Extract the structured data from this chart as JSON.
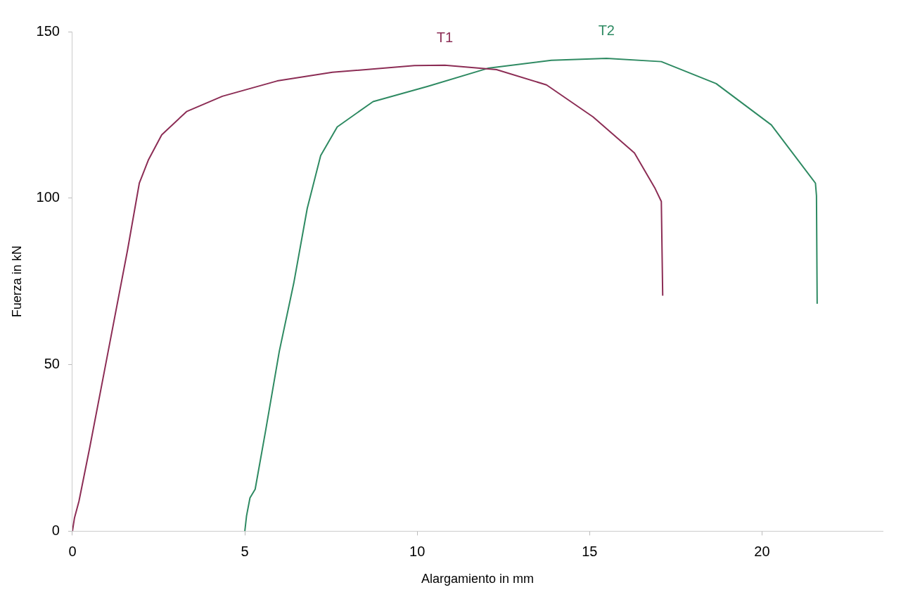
{
  "chart_data": {
    "type": "line",
    "xlabel": "Alargamiento in mm",
    "ylabel": "Fuerza in kN",
    "xlim": [
      0,
      23.5
    ],
    "xticks": [
      0,
      5,
      10,
      15,
      20
    ],
    "ylim": [
      0,
      150
    ],
    "yticks": [
      0,
      50,
      100,
      150
    ],
    "grid": false,
    "legend": false,
    "marker": "none",
    "line_style": "solid",
    "series": [
      {
        "name": "T1",
        "color": "#8c2d55",
        "x": [
          0,
          0.06,
          0.19,
          0.5,
          1.0,
          1.6,
          1.94,
          2.2,
          2.59,
          3.31,
          4.35,
          5.94,
          7.54,
          9.92,
          10.8,
          12.3,
          13.75,
          15.1,
          16.3,
          16.9,
          17.08,
          17.12
        ],
        "values": [
          0,
          4,
          9,
          25,
          52,
          84.5,
          104.5,
          111.4,
          119,
          126,
          130.6,
          135.2,
          137.8,
          139.8,
          139.9,
          138.6,
          134,
          124.4,
          113.6,
          102.9,
          99,
          70.7
        ]
      },
      {
        "name": "T2",
        "color": "#2e8a62",
        "x": [
          5.0,
          5.05,
          5.15,
          5.3,
          5.6,
          6.0,
          6.42,
          6.81,
          7.2,
          7.68,
          8.72,
          10.31,
          12.05,
          13.89,
          15.49,
          17.08,
          18.67,
          20.27,
          21.55,
          21.58,
          21.6
        ],
        "values": [
          0,
          4.6,
          10,
          12.6,
          30,
          54,
          74.5,
          96.9,
          112.8,
          121.4,
          129,
          133.6,
          139,
          141.4,
          142,
          141,
          134.4,
          122,
          104.5,
          100.7,
          68.3
        ]
      }
    ]
  }
}
